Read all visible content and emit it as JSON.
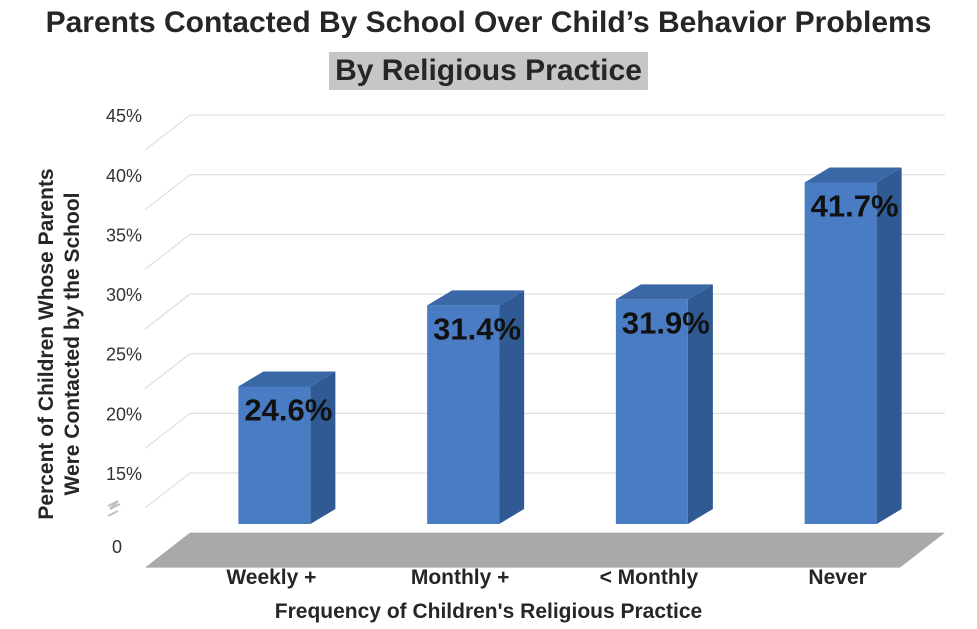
{
  "chart_data": {
    "type": "bar",
    "title": "Parents Contacted By School Over Child’s Behavior Problems",
    "subtitle": "By Religious Practice",
    "xlabel": "Frequency of Children's Religious Practice",
    "ylabel_line1": "Percent of Children Whose Parents",
    "ylabel_line2": "Were Contacted by the School",
    "categories": [
      "Weekly +",
      "Monthly +",
      "< Monthly",
      "Never"
    ],
    "values": [
      24.6,
      31.4,
      31.9,
      41.7
    ],
    "data_labels": [
      "24.6%",
      "31.4%",
      "31.9%",
      "41.7%"
    ],
    "y_ticks": [
      15,
      20,
      25,
      30,
      35,
      40,
      45
    ],
    "y_tick_labels": [
      "15%",
      "20%",
      "25%",
      "30%",
      "35%",
      "40%",
      "45%"
    ],
    "y_origin_label": "0",
    "ylim": [
      10,
      45
    ],
    "axis_break": true,
    "grid": true,
    "colors": {
      "bar_front": "#4a7cc4",
      "bar_side": "#2f5a93",
      "bar_top": "#3a68a6",
      "floor": "#a9a9a9",
      "grid": "#d9d9d9"
    }
  }
}
